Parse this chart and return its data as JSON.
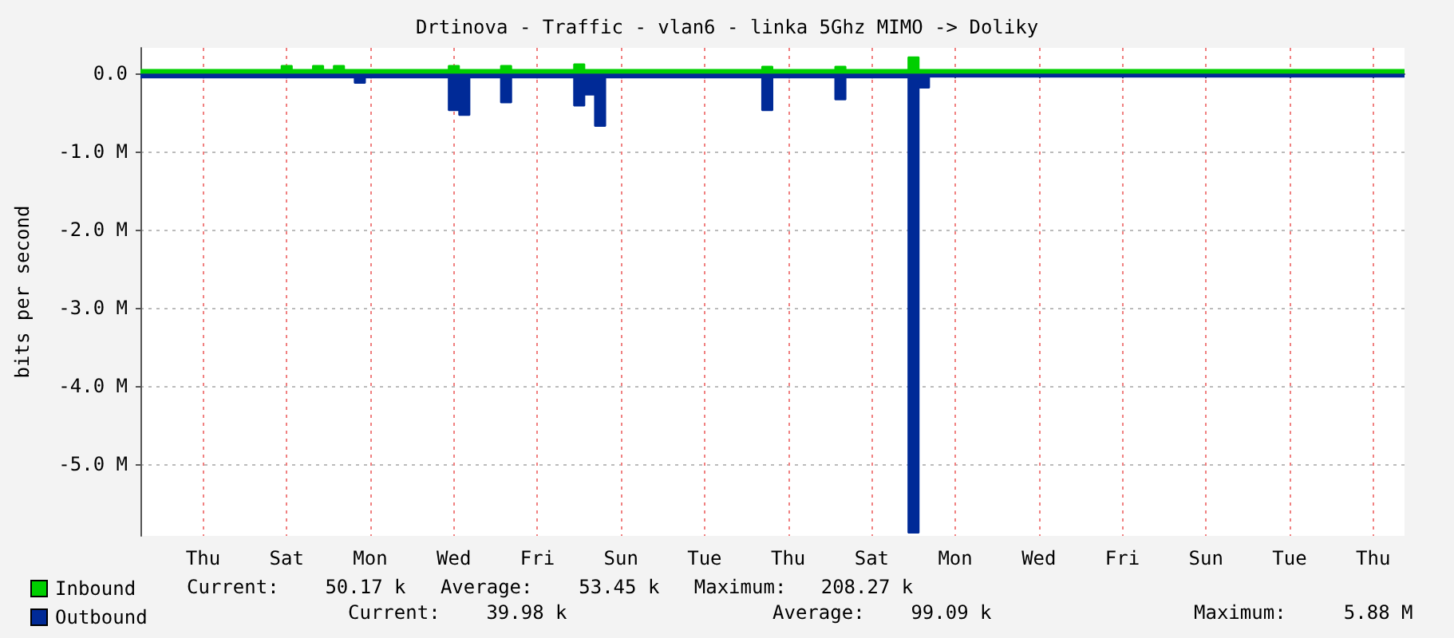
{
  "chart_data": {
    "type": "area",
    "title": "Drtinova - Traffic - vlan6 - linka 5Ghz MIMO -> Doliky",
    "ylabel": "bits per second",
    "categories": [
      null,
      null,
      null,
      null,
      null,
      null,
      "Thu",
      null,
      null,
      null,
      null,
      null,
      null,
      null,
      "Sat",
      null,
      null,
      null,
      null,
      null,
      null,
      null,
      "Mon",
      null,
      null,
      null,
      null,
      null,
      null,
      null,
      "Wed",
      null,
      null,
      null,
      null,
      null,
      null,
      null,
      "Fri",
      null,
      null,
      null,
      null,
      null,
      null,
      null,
      "Sun",
      null,
      null,
      null,
      null,
      null,
      null,
      null,
      "Tue",
      null,
      null,
      null,
      null,
      null,
      null,
      null,
      "Thu",
      null,
      null,
      null,
      null,
      null,
      null,
      null,
      "Sat",
      null,
      null,
      null,
      null,
      null,
      null,
      null,
      "Mon",
      null,
      null,
      null,
      null,
      null,
      null,
      null,
      "Wed",
      null,
      null,
      null,
      null,
      null,
      null,
      null,
      "Fri",
      null,
      null,
      null,
      null,
      null,
      null,
      null,
      "Sun",
      null,
      null,
      null,
      null,
      null,
      null,
      null,
      "Tue",
      null,
      null,
      null,
      null,
      null,
      null,
      null,
      "Thu",
      null,
      null,
      null
    ],
    "ylim": [
      -5920000,
      330000
    ],
    "yticks": [
      {
        "value": 0,
        "label": "0.0"
      },
      {
        "value": -1000000,
        "label": "-1.0 M"
      },
      {
        "value": -2000000,
        "label": "-2.0 M"
      },
      {
        "value": -3000000,
        "label": "-3.0 M"
      },
      {
        "value": -4000000,
        "label": "-4.0 M"
      },
      {
        "value": -5000000,
        "label": "-5.0 M"
      }
    ],
    "grid": true,
    "legend": "bottom left",
    "series": [
      {
        "name": "Inbound",
        "color": "#00cf00",
        "values": [
          50000,
          50000,
          50000,
          50000,
          50000,
          50000,
          50000,
          50000,
          50000,
          50000,
          50000,
          50000,
          50000,
          50000,
          100000,
          50000,
          50000,
          100000,
          50000,
          100000,
          50000,
          50000,
          50000,
          50000,
          50000,
          50000,
          50000,
          50000,
          50000,
          50000,
          100000,
          50000,
          50000,
          50000,
          50000,
          100000,
          50000,
          50000,
          50000,
          50000,
          50000,
          50000,
          120000,
          50000,
          50000,
          50000,
          50000,
          50000,
          50000,
          50000,
          50000,
          50000,
          50000,
          50000,
          50000,
          50000,
          50000,
          50000,
          50000,
          50000,
          90000,
          50000,
          50000,
          50000,
          50000,
          50000,
          50000,
          90000,
          50000,
          50000,
          50000,
          50000,
          50000,
          50000,
          210000,
          50000,
          50000,
          50000,
          50000,
          50000,
          50000,
          50000,
          50000,
          50000,
          50000,
          50000,
          50000,
          50000,
          50000,
          50000,
          50000,
          50000,
          50000,
          50000,
          50000,
          50000,
          50000,
          50000,
          50000,
          50000,
          50000,
          50000,
          50000,
          50000,
          50000,
          50000,
          50000,
          50000,
          50000,
          50000,
          50000,
          50000,
          50000,
          50000,
          50000,
          50000,
          50000,
          50000,
          50000,
          50000,
          50000,
          50000
        ]
      },
      {
        "name": "Outbound",
        "color": "#002a97",
        "values": [
          -50000,
          -50000,
          -50000,
          -50000,
          -50000,
          -50000,
          -50000,
          -50000,
          -50000,
          -50000,
          -50000,
          -50000,
          -50000,
          -50000,
          -50000,
          -50000,
          -50000,
          -50000,
          -50000,
          -50000,
          -50000,
          -120000,
          -50000,
          -50000,
          -50000,
          -50000,
          -50000,
          -50000,
          -50000,
          -50000,
          -470000,
          -530000,
          -50000,
          -50000,
          -50000,
          -370000,
          -50000,
          -50000,
          -50000,
          -50000,
          -50000,
          -50000,
          -410000,
          -270000,
          -670000,
          -50000,
          -50000,
          -50000,
          -50000,
          -50000,
          -50000,
          -50000,
          -50000,
          -50000,
          -50000,
          -50000,
          -50000,
          -50000,
          -50000,
          -50000,
          -470000,
          -50000,
          -50000,
          -50000,
          -50000,
          -50000,
          -50000,
          -330000,
          -50000,
          -50000,
          -50000,
          -50000,
          -50000,
          -50000,
          -5880000,
          -180000,
          -40000,
          -40000,
          -40000,
          -40000,
          -40000,
          -40000,
          -40000,
          -40000,
          -40000,
          -40000,
          -40000,
          -40000,
          -40000,
          -40000,
          -40000,
          -40000,
          -40000,
          -40000,
          -40000,
          -40000,
          -40000,
          -40000,
          -40000,
          -40000,
          -40000,
          -40000,
          -40000,
          -40000,
          -40000,
          -40000,
          -40000,
          -40000,
          -40000,
          -40000,
          -40000,
          -40000,
          -40000,
          -40000,
          -40000,
          -40000,
          -40000,
          -40000,
          -40000,
          -40000,
          -40000,
          -40000
        ]
      }
    ],
    "annotations": [
      "Current:    50.17 k   Average:    53.45 k   Maximum:   208.27 k",
      "Current:    39.98 k",
      "Average:    99.09 k",
      "Maximum:     5.88 M"
    ]
  }
}
